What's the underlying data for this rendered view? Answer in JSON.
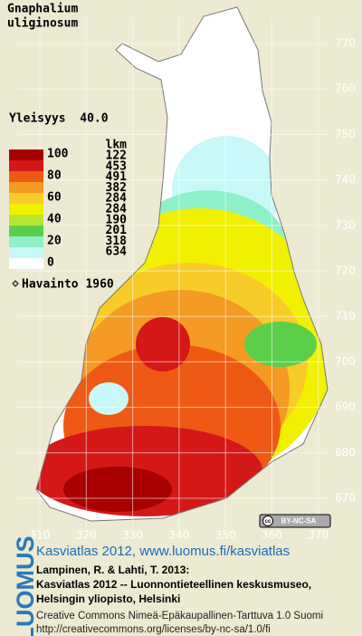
{
  "header": {
    "title_lines": [
      "Gnaphalium",
      "uliginosum"
    ]
  },
  "frequency": "Yleisyys  40.0",
  "legend": {
    "count_header": "lkm",
    "scale_labels": [
      100,
      80,
      60,
      40,
      20,
      0
    ],
    "colors": [
      "#a80000",
      "#d41818",
      "#ee5a14",
      "#f59a22",
      "#f8cc28",
      "#f0f000",
      "#b4e632",
      "#5ccf4a",
      "#8ef0c8",
      "#c8f8f8",
      "#ffffff"
    ],
    "counts": [
      122,
      453,
      491,
      382,
      284,
      284,
      190,
      201,
      318,
      634
    ],
    "observation": "Havainto 1960"
  },
  "grid": {
    "y_ticks": [
      770,
      760,
      750,
      740,
      730,
      720,
      710,
      700,
      690,
      680,
      670
    ],
    "x_ticks": [
      310,
      320,
      330,
      340,
      350,
      360,
      370
    ]
  },
  "license_badge": "BY-NC-SA",
  "footer": {
    "logo": "LUOMUS",
    "link": "Kasviatlas 2012, www.luomus.fi/kasviatlas",
    "citation": [
      "Lampinen, R. & Lahti, T. 2013:",
      "Kasviatlas 2012 -- Luonnontieteellinen keskusmuseo,",
      "Helsingin yliopisto, Helsinki"
    ],
    "license": [
      "Creative Commons Nimeä-Epäkaupallinen-Tarttuva 1.0 Suomi",
      "http://creativecommons.org/licenses/by-nc-sa/1.0/fi"
    ]
  }
}
